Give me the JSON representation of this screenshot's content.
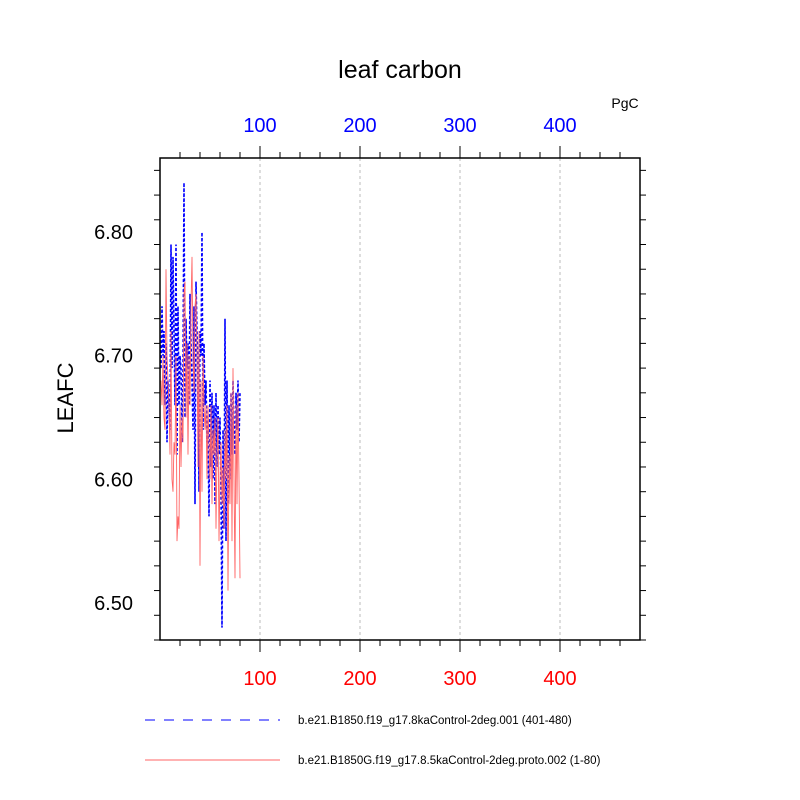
{
  "chart_data": {
    "type": "line",
    "title": "leaf carbon",
    "units": "PgC",
    "ylabel": "LEAFC",
    "xlabel": "",
    "xlim": [
      0,
      480
    ],
    "ylim": [
      6.47,
      6.86
    ],
    "x_ticks": [
      "100",
      "200",
      "300",
      "400"
    ],
    "y_ticks": [
      "6.50",
      "6.60",
      "6.70",
      "6.80"
    ],
    "top_axis_color": "#0000ff",
    "bottom_axis_color": "#ff0000",
    "grid": "vertical dashed at major x ticks",
    "legend_placement": "bottom",
    "series": [
      {
        "name": "b.e21.B1850.f19_g17.8kaControl-2deg.001 (401-480)",
        "color": "#0000ff",
        "dash": "dashed",
        "x": [
          1,
          2,
          3,
          4,
          5,
          6,
          7,
          8,
          9,
          10,
          11,
          12,
          13,
          14,
          15,
          16,
          17,
          18,
          19,
          20,
          21,
          22,
          23,
          24,
          25,
          26,
          27,
          28,
          29,
          30,
          31,
          32,
          33,
          34,
          35,
          36,
          37,
          38,
          39,
          40,
          41,
          42,
          43,
          44,
          45,
          46,
          47,
          48,
          49,
          50,
          51,
          52,
          53,
          54,
          55,
          56,
          57,
          58,
          59,
          60,
          61,
          62,
          63,
          64,
          65,
          66,
          67,
          68,
          69,
          70,
          71,
          72,
          73,
          74,
          75,
          76,
          77,
          78,
          79,
          80
        ],
        "values": [
          6.69,
          6.74,
          6.7,
          6.72,
          6.66,
          6.71,
          6.63,
          6.68,
          6.66,
          6.64,
          6.79,
          6.69,
          6.78,
          6.72,
          6.66,
          6.79,
          6.62,
          6.74,
          6.66,
          6.7,
          6.69,
          6.63,
          6.69,
          6.84,
          6.65,
          6.73,
          6.69,
          6.71,
          6.66,
          6.75,
          6.71,
          6.68,
          6.64,
          6.74,
          6.58,
          6.76,
          6.72,
          6.69,
          6.59,
          6.72,
          6.7,
          6.8,
          6.64,
          6.71,
          6.66,
          6.68,
          6.63,
          6.64,
          6.57,
          6.68,
          6.61,
          6.67,
          6.6,
          6.66,
          6.58,
          6.67,
          6.61,
          6.66,
          6.62,
          6.65,
          6.59,
          6.48,
          6.64,
          6.56,
          6.73,
          6.55,
          6.68,
          6.58,
          6.66,
          6.6,
          6.67,
          6.62,
          6.68,
          6.64,
          6.62,
          6.67,
          6.64,
          6.68,
          6.63,
          6.67
        ]
      },
      {
        "name": "b.e21.B1850G.f19_g17.8.5kaControl-2deg.proto.002 (1-80)",
        "color": "#ff6666",
        "dash": "solid",
        "x": [
          1,
          2,
          3,
          4,
          5,
          6,
          7,
          8,
          9,
          10,
          11,
          12,
          13,
          14,
          15,
          16,
          17,
          18,
          19,
          20,
          21,
          22,
          23,
          24,
          25,
          26,
          27,
          28,
          29,
          30,
          31,
          32,
          33,
          34,
          35,
          36,
          37,
          38,
          39,
          40,
          41,
          42,
          43,
          44,
          45,
          46,
          47,
          48,
          49,
          50,
          51,
          52,
          53,
          54,
          55,
          56,
          57,
          58,
          59,
          60,
          61,
          62,
          63,
          64,
          65,
          66,
          67,
          68,
          69,
          70,
          71,
          72,
          73,
          74,
          75,
          76,
          77,
          78,
          79,
          80
        ],
        "values": [
          6.68,
          6.66,
          6.7,
          6.65,
          6.64,
          6.77,
          6.7,
          6.68,
          6.66,
          6.62,
          6.72,
          6.6,
          6.59,
          6.63,
          6.62,
          6.7,
          6.55,
          6.57,
          6.56,
          6.66,
          6.61,
          6.65,
          6.63,
          6.75,
          6.76,
          6.65,
          6.71,
          6.62,
          6.7,
          6.66,
          6.74,
          6.78,
          6.7,
          6.67,
          6.74,
          6.75,
          6.7,
          6.61,
          6.72,
          6.53,
          6.68,
          6.59,
          6.7,
          6.66,
          6.64,
          6.66,
          6.6,
          6.66,
          6.63,
          6.6,
          6.66,
          6.58,
          6.64,
          6.62,
          6.65,
          6.56,
          6.62,
          6.65,
          6.55,
          6.6,
          6.63,
          6.58,
          6.61,
          6.56,
          6.64,
          6.6,
          6.66,
          6.51,
          6.62,
          6.58,
          6.67,
          6.55,
          6.69,
          6.6,
          6.52,
          6.66,
          6.58,
          6.67,
          6.6,
          6.52
        ]
      }
    ]
  }
}
